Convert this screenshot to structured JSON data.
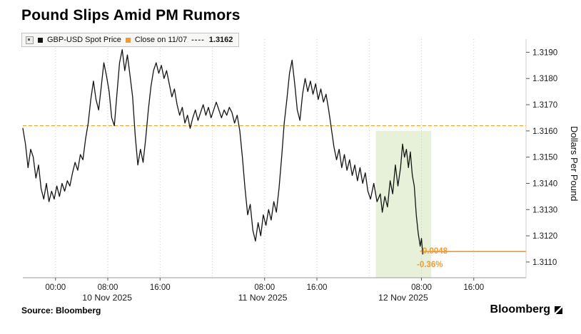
{
  "title": "Pound Slips Amid PM Rumors",
  "legend": {
    "series1_label": "GBP-USD Spot Price",
    "series2_label": "Close on 11/07",
    "series2_dash": "----",
    "series2_value": "1.3162"
  },
  "ylabel": "Dollars Per Pound",
  "annotation": {
    "change": "-0.0048",
    "pct": "-0.36%"
  },
  "source": "Source: Bloomberg",
  "brand": "Bloomberg",
  "colors": {
    "line": "#141414",
    "accent_orange": "#ed9b33",
    "band_green": "#e7f1da",
    "grid": "#c9c9c9",
    "axis": "#9a9a9a",
    "tick_text": "#1a1a1a"
  },
  "chart_data": {
    "type": "line",
    "title": "Pound Slips Amid PM Rumors",
    "ylabel": "Dollars Per Pound",
    "series_name": "GBP-USD Spot Price",
    "x_unit": "hours since 09 Nov 2025 19:00",
    "xlim": [
      0,
      77
    ],
    "ylim": [
      1.3104,
      1.3195
    ],
    "yticks": [
      1.311,
      1.312,
      1.313,
      1.314,
      1.315,
      1.316,
      1.317,
      1.318,
      1.319
    ],
    "gridlines_h": [
      5,
      13,
      21,
      29,
      37,
      45,
      53,
      61,
      69,
      77
    ],
    "xticks": [
      {
        "h": 5,
        "label": "00:00"
      },
      {
        "h": 13,
        "label": "08:00"
      },
      {
        "h": 21,
        "label": "16:00"
      },
      {
        "h": 37,
        "label": "08:00"
      },
      {
        "h": 45,
        "label": "16:00"
      },
      {
        "h": 61,
        "label": "08:00"
      },
      {
        "h": 69,
        "label": "16:00"
      }
    ],
    "day_labels": [
      {
        "h": 12.9,
        "label": "10 Nov 2025"
      },
      {
        "h": 36.7,
        "label": "11 Nov 2025"
      },
      {
        "h": 58.2,
        "label": "12 Nov 2025"
      }
    ],
    "close_line": {
      "value": 1.3162,
      "label": "Close on 11/07"
    },
    "close_extension": {
      "from_h": 61.2,
      "to_h": 77,
      "value": 1.3114
    },
    "highlight_band": {
      "h_start": 54,
      "h_end": 62.5,
      "price_top": 1.316
    },
    "change": -0.0048,
    "change_pct": -0.36,
    "series": [
      {
        "name": "GBP-USD Spot Price",
        "points": [
          [
            0,
            1.3161
          ],
          [
            0.4,
            1.3155
          ],
          [
            0.8,
            1.3146
          ],
          [
            1.2,
            1.3153
          ],
          [
            1.6,
            1.315
          ],
          [
            2,
            1.3142
          ],
          [
            2.4,
            1.3147
          ],
          [
            2.8,
            1.3138
          ],
          [
            3.2,
            1.3134
          ],
          [
            3.6,
            1.314
          ],
          [
            4,
            1.3133
          ],
          [
            4.4,
            1.3137
          ],
          [
            4.8,
            1.3134
          ],
          [
            5.2,
            1.3139
          ],
          [
            5.6,
            1.3135
          ],
          [
            6,
            1.314
          ],
          [
            6.4,
            1.3137
          ],
          [
            6.8,
            1.3141
          ],
          [
            7.2,
            1.3139
          ],
          [
            7.6,
            1.3144
          ],
          [
            8,
            1.3148
          ],
          [
            8.4,
            1.3145
          ],
          [
            8.8,
            1.3151
          ],
          [
            9.2,
            1.3149
          ],
          [
            9.6,
            1.3157
          ],
          [
            10,
            1.3163
          ],
          [
            10.4,
            1.3172
          ],
          [
            10.8,
            1.3179
          ],
          [
            11.2,
            1.3172
          ],
          [
            11.6,
            1.3168
          ],
          [
            12,
            1.3177
          ],
          [
            12.4,
            1.3186
          ],
          [
            12.8,
            1.3181
          ],
          [
            13.2,
            1.3175
          ],
          [
            13.6,
            1.3165
          ],
          [
            14,
            1.3162
          ],
          [
            14.4,
            1.3174
          ],
          [
            14.8,
            1.3186
          ],
          [
            15.2,
            1.3191
          ],
          [
            15.6,
            1.3183
          ],
          [
            16,
            1.3189
          ],
          [
            16.4,
            1.3181
          ],
          [
            16.8,
            1.3173
          ],
          [
            17.2,
            1.3158
          ],
          [
            17.6,
            1.3147
          ],
          [
            18,
            1.3153
          ],
          [
            18.4,
            1.3148
          ],
          [
            18.8,
            1.3157
          ],
          [
            19.2,
            1.3168
          ],
          [
            19.6,
            1.3177
          ],
          [
            20,
            1.3183
          ],
          [
            20.4,
            1.3186
          ],
          [
            20.8,
            1.3182
          ],
          [
            21.2,
            1.3185
          ],
          [
            21.6,
            1.318
          ],
          [
            22,
            1.3183
          ],
          [
            22.4,
            1.3178
          ],
          [
            22.8,
            1.3173
          ],
          [
            23.2,
            1.3176
          ],
          [
            23.6,
            1.317
          ],
          [
            24,
            1.3166
          ],
          [
            24.4,
            1.3169
          ],
          [
            24.8,
            1.3163
          ],
          [
            25.2,
            1.3166
          ],
          [
            25.6,
            1.3161
          ],
          [
            26,
            1.3165
          ],
          [
            26.4,
            1.3168
          ],
          [
            26.8,
            1.3164
          ],
          [
            27.2,
            1.3167
          ],
          [
            27.6,
            1.317
          ],
          [
            28,
            1.3166
          ],
          [
            28.4,
            1.3169
          ],
          [
            28.8,
            1.3165
          ],
          [
            29.2,
            1.3168
          ],
          [
            29.6,
            1.3171
          ],
          [
            30,
            1.3168
          ],
          [
            30.4,
            1.3165
          ],
          [
            30.8,
            1.3168
          ],
          [
            31.2,
            1.3166
          ],
          [
            31.6,
            1.3169
          ],
          [
            32,
            1.3167
          ],
          [
            32.4,
            1.3163
          ],
          [
            32.8,
            1.3166
          ],
          [
            33.2,
            1.316
          ],
          [
            33.6,
            1.315
          ],
          [
            34,
            1.3138
          ],
          [
            34.4,
            1.3128
          ],
          [
            34.8,
            1.3132
          ],
          [
            35.2,
            1.3122
          ],
          [
            35.6,
            1.3118
          ],
          [
            36,
            1.3125
          ],
          [
            36.4,
            1.312
          ],
          [
            36.8,
            1.3128
          ],
          [
            37.2,
            1.3124
          ],
          [
            37.6,
            1.313
          ],
          [
            38,
            1.3126
          ],
          [
            38.4,
            1.3133
          ],
          [
            38.8,
            1.3129
          ],
          [
            39.2,
            1.3138
          ],
          [
            39.6,
            1.315
          ],
          [
            40,
            1.3163
          ],
          [
            40.4,
            1.3172
          ],
          [
            40.8,
            1.3182
          ],
          [
            41.2,
            1.3187
          ],
          [
            41.6,
            1.3178
          ],
          [
            42,
            1.3168
          ],
          [
            42.4,
            1.3164
          ],
          [
            42.8,
            1.3174
          ],
          [
            43.2,
            1.318
          ],
          [
            43.6,
            1.3175
          ],
          [
            44,
            1.3179
          ],
          [
            44.4,
            1.3174
          ],
          [
            44.8,
            1.3178
          ],
          [
            45.2,
            1.3172
          ],
          [
            45.6,
            1.3176
          ],
          [
            46,
            1.3171
          ],
          [
            46.4,
            1.3174
          ],
          [
            46.8,
            1.3168
          ],
          [
            47.2,
            1.3161
          ],
          [
            47.6,
            1.3154
          ],
          [
            48,
            1.3149
          ],
          [
            48.4,
            1.3153
          ],
          [
            48.8,
            1.3146
          ],
          [
            49.2,
            1.3151
          ],
          [
            49.6,
            1.3145
          ],
          [
            50,
            1.3149
          ],
          [
            50.4,
            1.3143
          ],
          [
            50.8,
            1.3147
          ],
          [
            51.2,
            1.3141
          ],
          [
            51.6,
            1.3146
          ],
          [
            52,
            1.314
          ],
          [
            52.4,
            1.3144
          ],
          [
            52.8,
            1.3137
          ],
          [
            53.2,
            1.3134
          ],
          [
            53.7,
            1.314
          ],
          [
            54.2,
            1.3133
          ],
          [
            54.7,
            1.3136
          ],
          [
            55,
            1.3129
          ],
          [
            55.4,
            1.3135
          ],
          [
            55.8,
            1.3131
          ],
          [
            56.2,
            1.3141
          ],
          [
            56.6,
            1.3136
          ],
          [
            57,
            1.3147
          ],
          [
            57.4,
            1.3139
          ],
          [
            57.8,
            1.3146
          ],
          [
            58.1,
            1.3155
          ],
          [
            58.4,
            1.315
          ],
          [
            58.7,
            1.3153
          ],
          [
            59,
            1.3146
          ],
          [
            59.3,
            1.3152
          ],
          [
            59.6,
            1.3143
          ],
          [
            59.9,
            1.3139
          ],
          [
            60.2,
            1.3128
          ],
          [
            60.5,
            1.3121
          ],
          [
            60.8,
            1.3116
          ],
          [
            61,
            1.3119
          ],
          [
            61.2,
            1.3113
          ]
        ]
      }
    ]
  }
}
